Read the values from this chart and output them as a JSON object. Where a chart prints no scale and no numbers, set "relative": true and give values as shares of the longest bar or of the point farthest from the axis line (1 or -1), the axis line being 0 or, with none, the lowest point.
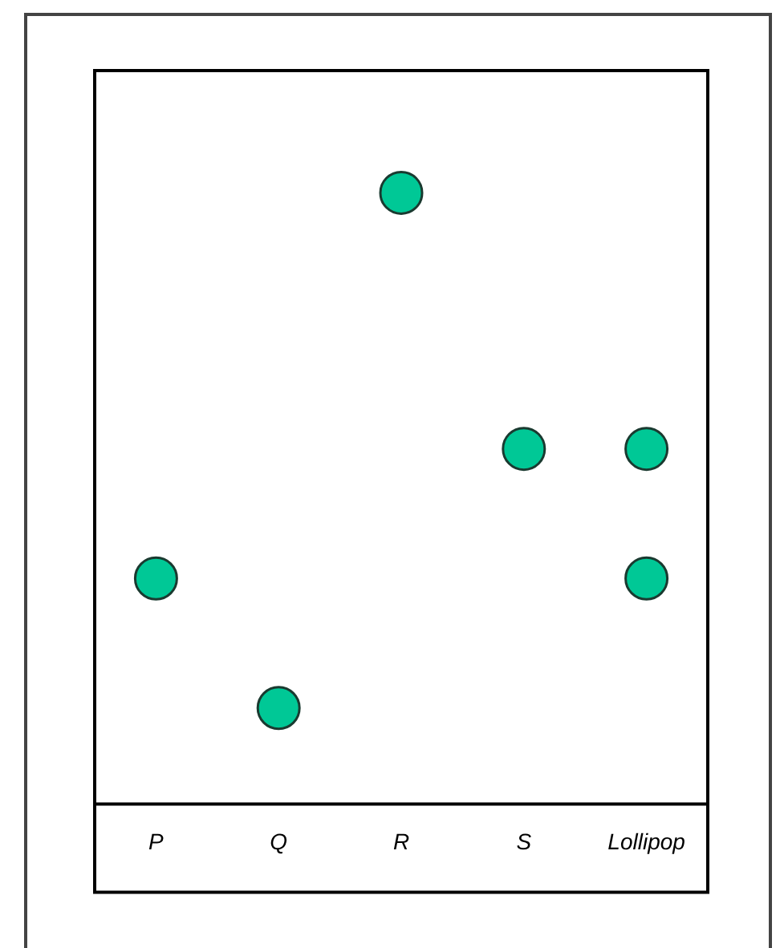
{
  "chart_data": {
    "type": "scatter",
    "relative": true,
    "marker": "circle",
    "categories": [
      "P",
      "Q",
      "R",
      "S",
      "Lollipop"
    ],
    "series": [
      {
        "color": "#00c896",
        "values": [
          0.369,
          0.157,
          1,
          0.581,
          0.581
        ]
      },
      {
        "color": "#00c896",
        "values": [
          null,
          null,
          null,
          null,
          0.369
        ]
      }
    ],
    "grid": false,
    "legend": false
  }
}
